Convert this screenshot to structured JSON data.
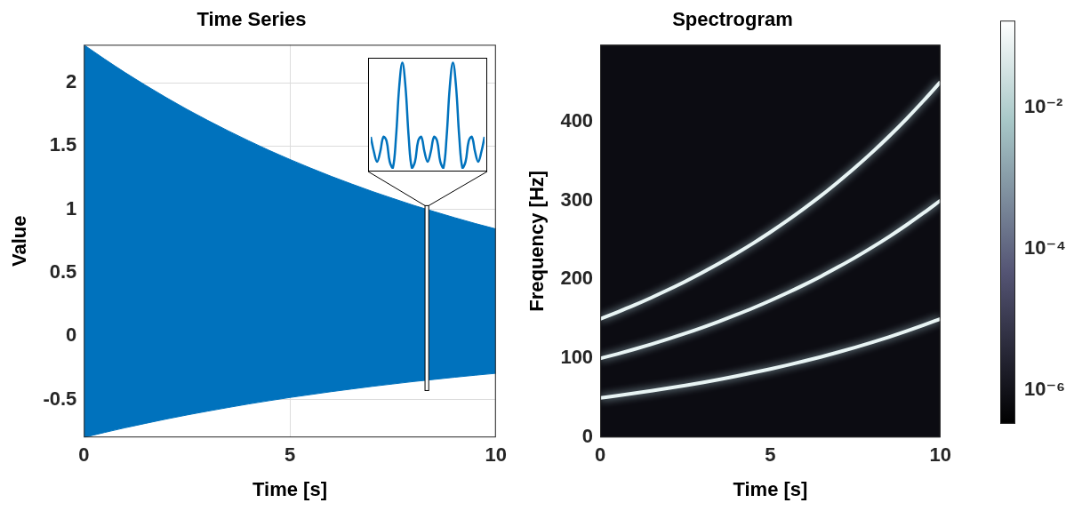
{
  "chart_data": [
    {
      "type": "band",
      "title": "Time Series",
      "x_label": "Time [s]",
      "y_label": "Value",
      "x": [
        0,
        0.5,
        1,
        1.5,
        2,
        2.5,
        3,
        3.5,
        4,
        4.5,
        5,
        5.5,
        6,
        6.5,
        7,
        7.5,
        8,
        8.5,
        9,
        9.5,
        10
      ],
      "upper": [
        2.3,
        2.188,
        2.081,
        1.98,
        1.883,
        1.791,
        1.704,
        1.621,
        1.542,
        1.466,
        1.395,
        1.327,
        1.262,
        1.201,
        1.142,
        1.087,
        1.033,
        0.983,
        0.935,
        0.889,
        0.846
      ],
      "lower": [
        -0.8,
        -0.761,
        -0.724,
        -0.689,
        -0.655,
        -0.623,
        -0.593,
        -0.564,
        -0.536,
        -0.51,
        -0.485,
        -0.462,
        -0.439,
        -0.418,
        -0.397,
        -0.378,
        -0.359,
        -0.342,
        -0.325,
        -0.309,
        -0.294
      ],
      "color": "#0072bd",
      "xlim": [
        0,
        10
      ],
      "xticks": [
        0,
        5,
        10
      ],
      "ylim": [
        -0.8,
        2.3
      ],
      "yticks": [
        -0.5,
        0,
        0.5,
        1,
        1.5,
        2
      ],
      "grid": true,
      "inset": {
        "type": "line",
        "color": "#0072bd",
        "tick_labels": false,
        "xlim": [
          8.28,
          8.37
        ],
        "ylim": [
          -0.43,
          1.03
        ],
        "x": [
          8.28,
          8.2825,
          8.285,
          8.2875,
          8.29,
          8.2925,
          8.295,
          8.2975,
          8.3,
          8.3025,
          8.305,
          8.3075,
          8.31,
          8.3125,
          8.315,
          8.3175,
          8.32,
          8.3225,
          8.325,
          8.3275,
          8.33,
          8.3325,
          8.335,
          8.3375,
          8.34,
          8.3425,
          8.345,
          8.3475,
          8.35,
          8.3525,
          8.355,
          8.3575,
          8.36,
          8.3625,
          8.365,
          8.3675,
          8.37
        ],
        "values": [
          0,
          -0.2,
          -0.333,
          -0.2,
          0,
          -0.055,
          -0.333,
          -0.416,
          0,
          0.671,
          1.0,
          0.671,
          0,
          -0.416,
          -0.333,
          -0.055,
          0,
          -0.2,
          -0.333,
          -0.2,
          0,
          -0.055,
          -0.333,
          -0.416,
          0,
          0.671,
          1.0,
          0.671,
          0,
          -0.416,
          -0.333,
          -0.055,
          0,
          -0.2,
          -0.333,
          -0.2,
          0
        ]
      }
    },
    {
      "type": "line",
      "title": "Spectrogram",
      "x_label": "Time [s]",
      "y_label": "Frequency [Hz]",
      "x": [
        0,
        0.5,
        1,
        1.5,
        2,
        2.5,
        3,
        3.5,
        4,
        4.5,
        5,
        5.5,
        6,
        6.5,
        7,
        7.5,
        8,
        8.5,
        9,
        9.5,
        10
      ],
      "series": [
        {
          "color": "#e8f4f4",
          "values": [
            50,
            52.8,
            55.8,
            59.0,
            62.3,
            65.8,
            69.5,
            73.4,
            77.6,
            82.0,
            86.6,
            91.5,
            96.7,
            102.1,
            107.9,
            114.0,
            120.4,
            127.2,
            134.4,
            142.0,
            150
          ]
        },
        {
          "color": "#e8f4f4",
          "values": [
            100,
            105.6,
            111.6,
            117.9,
            124.6,
            131.6,
            139.0,
            146.9,
            155.2,
            163.9,
            173.2,
            183.0,
            193.3,
            204.2,
            215.8,
            227.9,
            240.8,
            254.4,
            268.8,
            284.0,
            300
          ]
        },
        {
          "color": "#e8f4f4",
          "values": [
            150,
            158.5,
            167.4,
            176.9,
            186.9,
            197.4,
            208.6,
            220.3,
            232.8,
            245.9,
            259.8,
            274.5,
            290.0,
            306.3,
            323.7,
            341.9,
            361.2,
            381.6,
            403.2,
            426.0,
            450
          ]
        }
      ],
      "xlim": [
        0,
        10
      ],
      "xticks": [
        0,
        5,
        10
      ],
      "ylim": [
        0,
        497
      ],
      "yticks": [
        0,
        100,
        200,
        300,
        400
      ],
      "grid": false,
      "colorbar": {
        "log": true,
        "range": [
          3.3e-07,
          0.17
        ],
        "ticks": [
          {
            "value": 0.01,
            "label": "10⁻²"
          },
          {
            "value": 0.0001,
            "label": "10⁻⁴"
          },
          {
            "value": 1e-06,
            "label": "10⁻⁶"
          }
        ]
      }
    }
  ]
}
